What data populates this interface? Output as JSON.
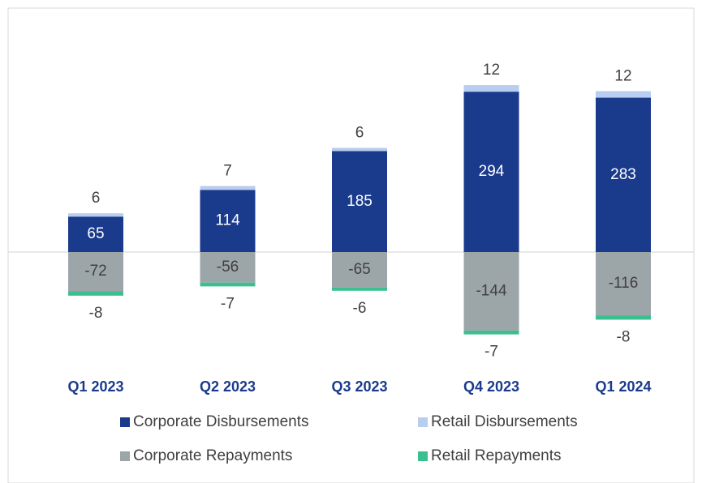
{
  "chart_data": {
    "type": "stacked-bar",
    "categories": [
      "Q1 2023",
      "Q2 2023",
      "Q3 2023",
      "Q4 2023",
      "Q1 2024"
    ],
    "series": [
      {
        "name": "Corporate Disbursements",
        "color": "#1a3a8c",
        "values": [
          65,
          114,
          185,
          294,
          283
        ]
      },
      {
        "name": "Retail Disbursements",
        "color": "#b9cdf0",
        "values": [
          6,
          7,
          6,
          12,
          12
        ]
      },
      {
        "name": "Corporate Repayments",
        "color": "#9ca5a8",
        "values": [
          -72,
          -56,
          -65,
          -144,
          -116
        ]
      },
      {
        "name": "Retail Repayments",
        "color": "#3cbf8f",
        "values": [
          -8,
          -7,
          -6,
          -7,
          -8
        ]
      }
    ]
  }
}
